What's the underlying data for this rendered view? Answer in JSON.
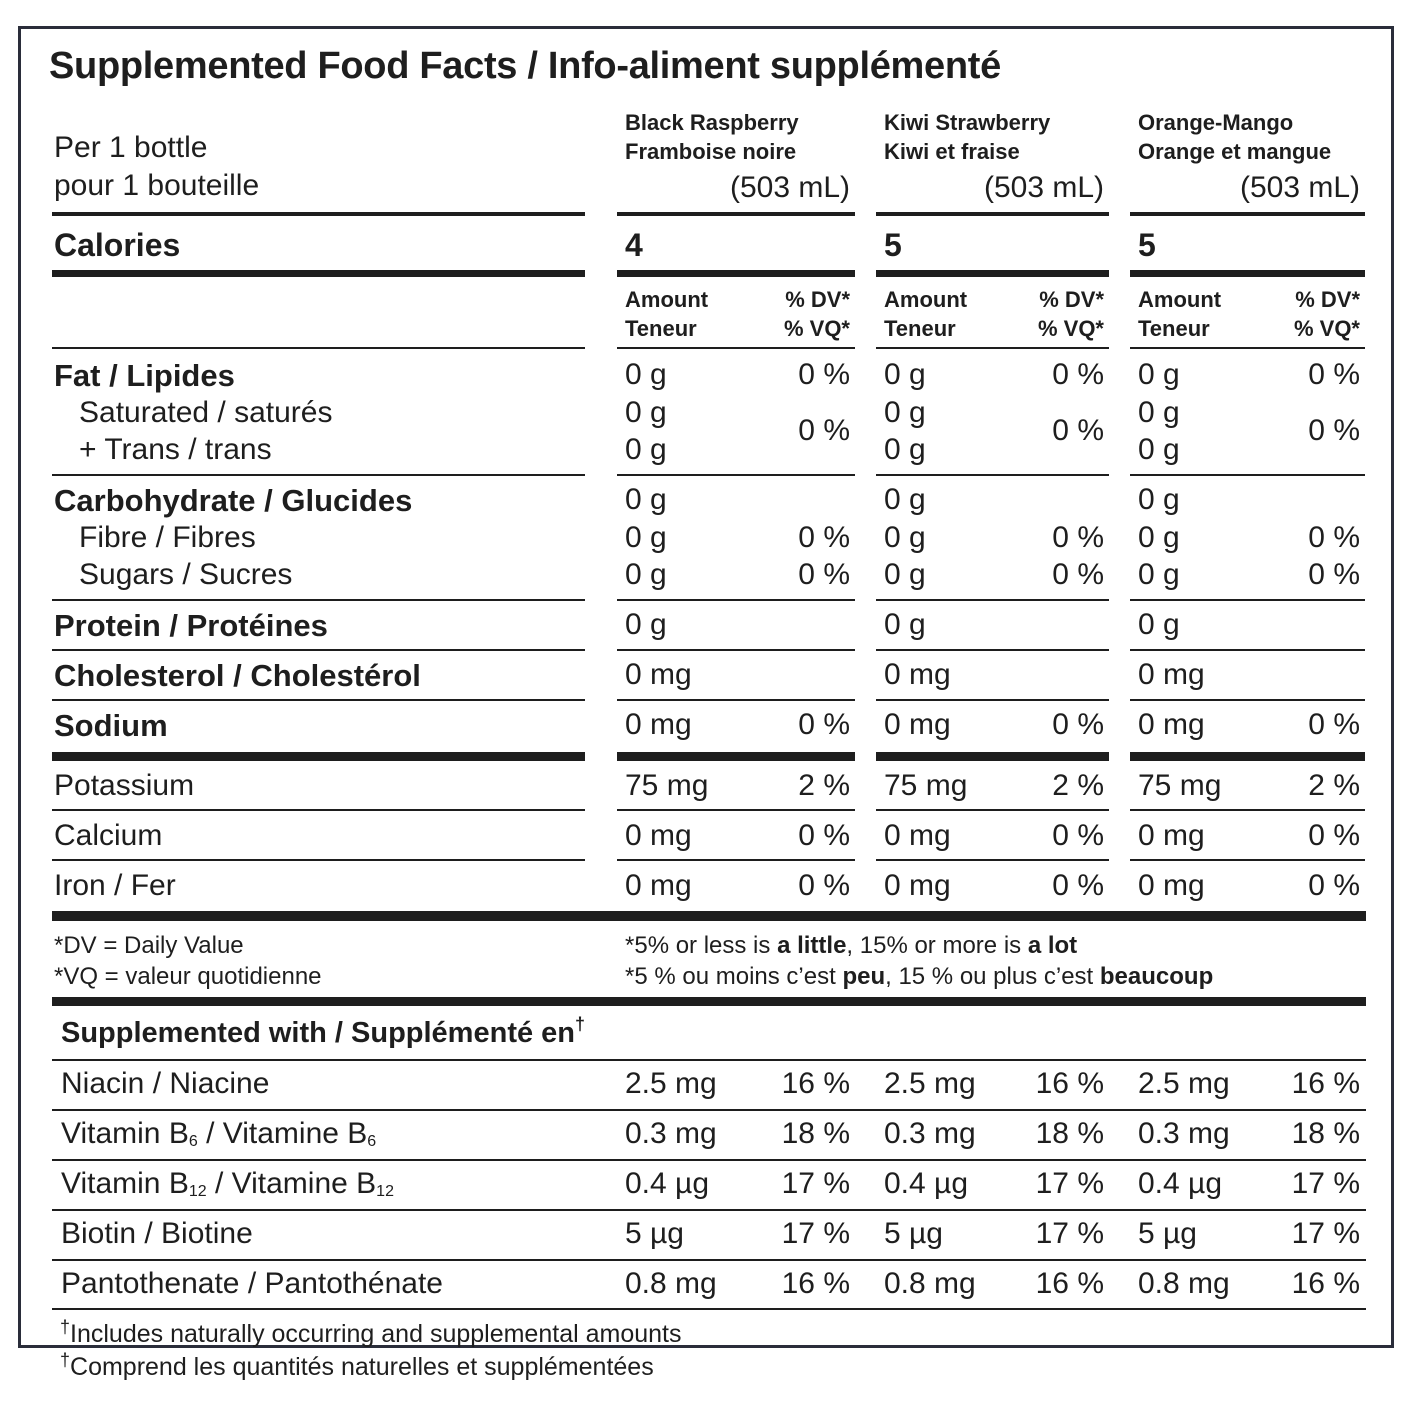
{
  "title": "Supplemented Food Facts / Info-aliment supplémenté",
  "serving": {
    "line1": "Per 1 bottle",
    "line2": "pour 1 bouteille"
  },
  "flavors": [
    {
      "name_en": "Black Raspberry",
      "name_fr": "Framboise noire",
      "volume": "(503 mL)",
      "calories": "4"
    },
    {
      "name_en": "Kiwi Strawberry",
      "name_fr": "Kiwi et fraise",
      "volume": "(503 mL)",
      "calories": "5"
    },
    {
      "name_en": "Orange-Mango",
      "name_fr": "Orange et mangue",
      "volume": "(503 mL)",
      "calories": "5"
    }
  ],
  "calories_label": "Calories",
  "col_headers": {
    "amount_en": "Amount",
    "amount_fr": "Teneur",
    "dv_en": "% DV*",
    "dv_fr": "% VQ*"
  },
  "nutrients": {
    "fat": {
      "label": "Fat / Lipides",
      "amount": "0 g",
      "dv": "0 %"
    },
    "saturated": {
      "label": "Saturated / saturés",
      "amount": "0 g"
    },
    "trans": {
      "label": "+ Trans / trans",
      "amount": "0 g"
    },
    "sat_trans_dv": "0 %",
    "carbohydrate": {
      "label": "Carbohydrate / Glucides",
      "amount": "0 g"
    },
    "fibre": {
      "label": "Fibre / Fibres",
      "amount": "0 g",
      "dv": "0 %"
    },
    "sugars": {
      "label": "Sugars / Sucres",
      "amount": "0 g",
      "dv": "0 %"
    },
    "protein": {
      "label": "Protein / Protéines",
      "amount": "0 g"
    },
    "cholesterol": {
      "label": "Cholesterol / Cholestérol",
      "amount": "0 mg"
    },
    "sodium": {
      "label": "Sodium",
      "amount": "0 mg",
      "dv": "0 %"
    },
    "potassium": {
      "label": "Potassium",
      "amount": "75 mg",
      "dv": "2 %"
    },
    "calcium": {
      "label": "Calcium",
      "amount": "0 mg",
      "dv": "0 %"
    },
    "iron": {
      "label": "Iron / Fer",
      "amount": "0 mg",
      "dv": "0 %"
    }
  },
  "footnotes": {
    "dv_def": "*DV = Daily Value",
    "vq_def": "*VQ = valeur quotidienne",
    "en": {
      "a": "*5% or less is ",
      "b": "a little",
      "c": ", 15% or more is ",
      "d": "a lot"
    },
    "fr": {
      "a": "*5 % ou moins c’est ",
      "b": "peu",
      "c": ", 15 % ou plus c’est ",
      "d": "beaucoup"
    }
  },
  "supplemented": {
    "heading": "Supplemented with / Supplémenté en",
    "dagger": "†",
    "rows": [
      {
        "label": "Niacin / Niacine",
        "amount": "2.5 mg",
        "dv": "16 %"
      },
      {
        "label_a": "Vitamin B",
        "sub_a": "6",
        "label_b": " / Vitamine B",
        "sub_b": "6",
        "amount": "0.3 mg",
        "dv": "18 %"
      },
      {
        "label_a": "Vitamin B",
        "sub_a": "12",
        "label_b": " / Vitamine B",
        "sub_b": "12",
        "amount": "0.4 µg",
        "dv": "17 %"
      },
      {
        "label": "Biotin / Biotine",
        "amount": "5 µg",
        "dv": "17 %"
      },
      {
        "label": "Pantothenate / Pantothénate",
        "amount": "0.8 mg",
        "dv": "16 %"
      }
    ]
  },
  "bottom_notes": {
    "dagger": "†",
    "en": "Includes naturally occurring and supplemental amounts",
    "fr": "Comprend les quantités naturelles et supplémentées"
  }
}
